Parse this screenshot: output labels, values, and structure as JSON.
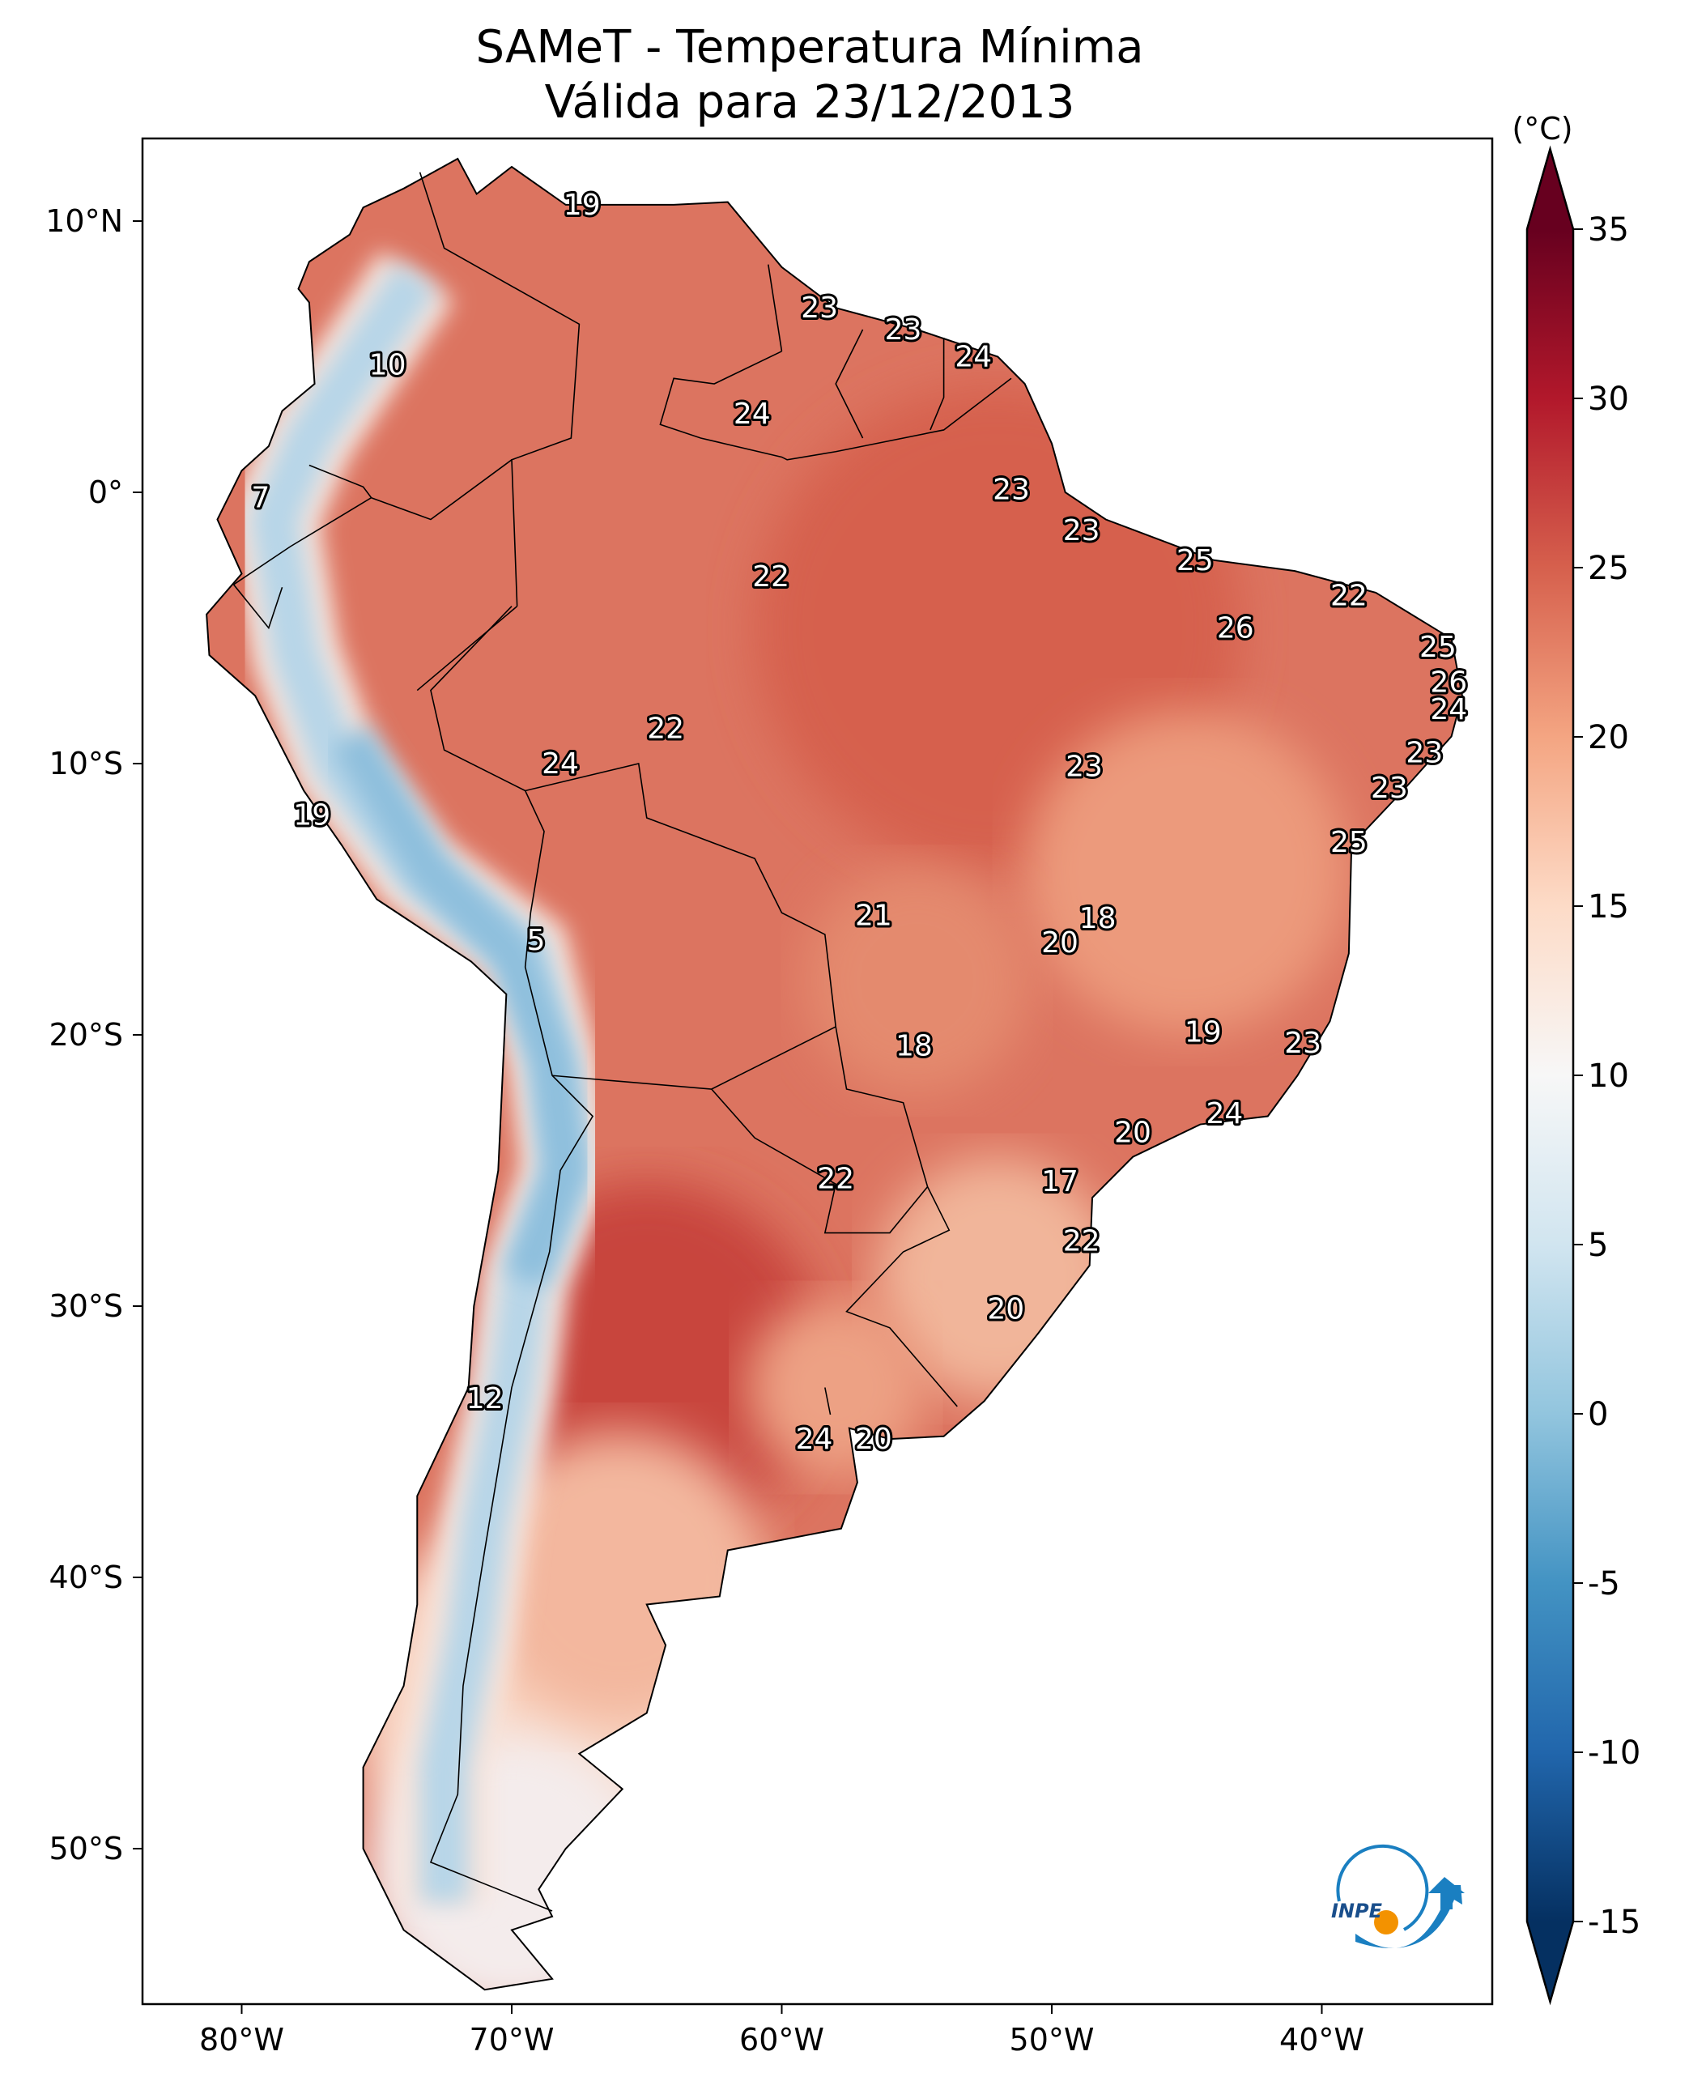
{
  "title": {
    "line1": "SAMeT - Temperatura Mínima",
    "line2": "Válida para 23/12/2013"
  },
  "axes": {
    "lon_ticks": [
      "80°W",
      "70°W",
      "60°W",
      "50°W",
      "40°W"
    ],
    "lon_values": [
      -80,
      -70,
      -60,
      -50,
      -40
    ],
    "lat_ticks": [
      "10°N",
      "0°",
      "10°S",
      "20°S",
      "30°S",
      "40°S",
      "50°S"
    ],
    "lat_values": [
      10,
      0,
      -10,
      -20,
      -30,
      -40,
      -50
    ]
  },
  "colorbar": {
    "unit_label": "(°C)",
    "ticks": [
      "35",
      "30",
      "25",
      "20",
      "15",
      "10",
      "5",
      "0",
      "-5",
      "-10",
      "-15"
    ],
    "tick_values": [
      35,
      30,
      25,
      20,
      15,
      10,
      5,
      0,
      -5,
      -10,
      -15
    ],
    "range": [
      -15,
      35
    ],
    "colormap": "RdBu_r",
    "extend": "both",
    "colors": [
      "#053061",
      "#2166ac",
      "#4393c3",
      "#92c5de",
      "#d1e5f0",
      "#f7f7f7",
      "#fddbc7",
      "#f4a582",
      "#d6604d",
      "#b2182b",
      "#67001f"
    ]
  },
  "stations": [
    {
      "label": "19",
      "lon": -67.4,
      "lat": 10.6
    },
    {
      "label": "23",
      "lon": -58.6,
      "lat": 6.8
    },
    {
      "label": "23",
      "lon": -55.5,
      "lat": 6.0
    },
    {
      "label": "24",
      "lon": -52.9,
      "lat": 5.0
    },
    {
      "label": "10",
      "lon": -74.6,
      "lat": 4.7
    },
    {
      "label": "24",
      "lon": -61.1,
      "lat": 2.9
    },
    {
      "label": "7",
      "lon": -79.3,
      "lat": -0.2
    },
    {
      "label": "23",
      "lon": -51.5,
      "lat": 0.1
    },
    {
      "label": "23",
      "lon": -48.9,
      "lat": -1.4
    },
    {
      "label": "25",
      "lon": -44.7,
      "lat": -2.5
    },
    {
      "label": "22",
      "lon": -60.4,
      "lat": -3.1
    },
    {
      "label": "22",
      "lon": -39.0,
      "lat": -3.8
    },
    {
      "label": "26",
      "lon": -43.2,
      "lat": -5.0
    },
    {
      "label": "25",
      "lon": -35.7,
      "lat": -5.7
    },
    {
      "label": "26",
      "lon": -35.3,
      "lat": -7.0
    },
    {
      "label": "24",
      "lon": -35.3,
      "lat": -8.0
    },
    {
      "label": "22",
      "lon": -64.3,
      "lat": -8.7
    },
    {
      "label": "24",
      "lon": -68.2,
      "lat": -10.0
    },
    {
      "label": "23",
      "lon": -48.8,
      "lat": -10.1
    },
    {
      "label": "23",
      "lon": -36.2,
      "lat": -9.6
    },
    {
      "label": "23",
      "lon": -37.5,
      "lat": -10.9
    },
    {
      "label": "19",
      "lon": -77.4,
      "lat": -11.9
    },
    {
      "label": "25",
      "lon": -39.0,
      "lat": -12.9
    },
    {
      "label": "5",
      "lon": -69.1,
      "lat": -16.5
    },
    {
      "label": "21",
      "lon": -56.6,
      "lat": -15.6
    },
    {
      "label": "18",
      "lon": -48.3,
      "lat": -15.7
    },
    {
      "label": "20",
      "lon": -49.7,
      "lat": -16.6
    },
    {
      "label": "19",
      "lon": -44.4,
      "lat": -19.9
    },
    {
      "label": "23",
      "lon": -40.7,
      "lat": -20.3
    },
    {
      "label": "18",
      "lon": -55.1,
      "lat": -20.4
    },
    {
      "label": "24",
      "lon": -43.6,
      "lat": -22.9
    },
    {
      "label": "20",
      "lon": -47.0,
      "lat": -23.6
    },
    {
      "label": "22",
      "lon": -58.0,
      "lat": -25.3
    },
    {
      "label": "17",
      "lon": -49.7,
      "lat": -25.4
    },
    {
      "label": "22",
      "lon": -48.9,
      "lat": -27.6
    },
    {
      "label": "20",
      "lon": -51.7,
      "lat": -30.1
    },
    {
      "label": "12",
      "lon": -71.0,
      "lat": -33.4
    },
    {
      "label": "24",
      "lon": -58.8,
      "lat": -34.9
    },
    {
      "label": "20",
      "lon": -56.6,
      "lat": -34.9
    }
  ],
  "logo": {
    "text": "INPE",
    "blue": "#1a7fc1",
    "orange": "#f39200"
  }
}
